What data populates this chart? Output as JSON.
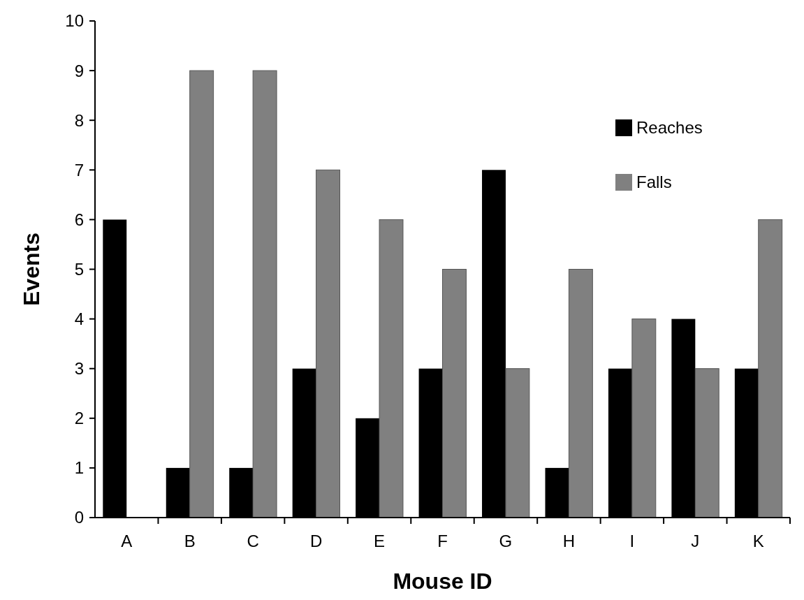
{
  "chart_data": {
    "type": "bar",
    "xlabel": "Mouse ID",
    "ylabel": "Events",
    "categories": [
      "A",
      "B",
      "C",
      "D",
      "E",
      "F",
      "G",
      "H",
      "I",
      "J",
      "K"
    ],
    "series": [
      {
        "name": "Reaches",
        "color": "#000000",
        "values": [
          6,
          1,
          1,
          3,
          2,
          3,
          7,
          1,
          3,
          4,
          3
        ]
      },
      {
        "name": "Falls",
        "color": "#808080",
        "values": [
          0,
          9,
          9,
          7,
          6,
          5,
          3,
          5,
          4,
          3,
          6
        ]
      }
    ],
    "ylim": [
      0,
      10
    ],
    "yticks": [
      0,
      1,
      2,
      3,
      4,
      5,
      6,
      7,
      8,
      9,
      10
    ],
    "grid": false,
    "legend": "top right"
  }
}
